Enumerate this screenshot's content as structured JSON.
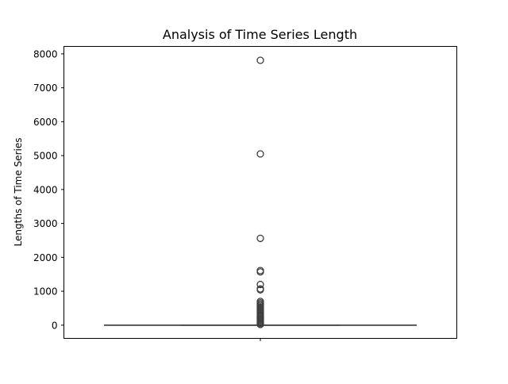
{
  "chart_data": {
    "type": "box",
    "title": "Analysis of Time Series Length",
    "xlabel": "",
    "ylabel": "Lengths of Time Series",
    "ylim": [
      -390,
      8220
    ],
    "yticks": [
      0,
      1000,
      2000,
      3000,
      4000,
      5000,
      6000,
      7000,
      8000
    ],
    "grid": false,
    "box": {
      "whisker_low": 0,
      "q1": 0,
      "median": 0,
      "q3": 0,
      "whisker_high": 0
    },
    "outliers": [
      7810,
      5050,
      2560,
      1610,
      1570,
      1200,
      1070,
      1040,
      700,
      660,
      620,
      580,
      540,
      500,
      460,
      420,
      380,
      340,
      300,
      260,
      230,
      200,
      170,
      140,
      110,
      80,
      50,
      20
    ]
  },
  "colors": {
    "box_edge": "#3f3f3f",
    "axes": "#000000",
    "background": "#ffffff"
  }
}
